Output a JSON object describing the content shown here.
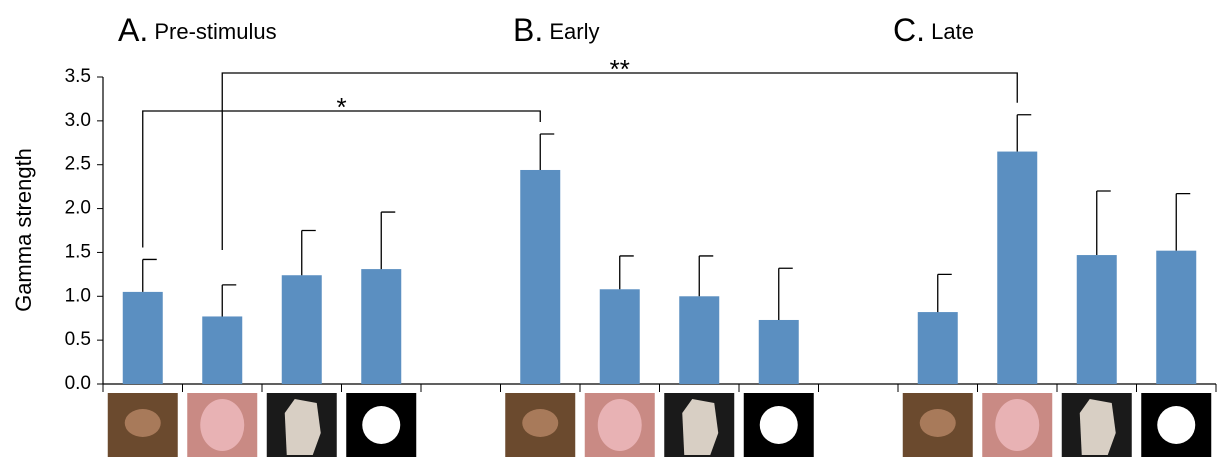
{
  "chart_data": {
    "type": "bar",
    "y_label": "Gamma strength",
    "panels": [
      {
        "letter": "A.",
        "name": "Pre-stimulus"
      },
      {
        "letter": "B.",
        "name": "Early"
      },
      {
        "letter": "C.",
        "name": "Late"
      }
    ],
    "categories": [
      null,
      null,
      null,
      null,
      null,
      null,
      null,
      null,
      null,
      null,
      null,
      null,
      null,
      null
    ],
    "values": [
      1.05,
      0.77,
      1.24,
      1.31,
      null,
      2.44,
      1.08,
      1.0,
      0.73,
      null,
      0.82,
      2.65,
      1.47,
      1.52
    ],
    "errors": [
      0.37,
      0.36,
      0.51,
      0.65,
      null,
      0.41,
      0.38,
      0.46,
      0.59,
      null,
      0.43,
      0.42,
      0.73,
      0.65
    ],
    "color": "#5b8fc1",
    "significance": [
      "*",
      "**"
    ],
    "ylim": [
      0,
      3.5
    ],
    "yticks": [
      {
        "value": 0,
        "label": "0.0"
      },
      0.5,
      {
        "value": 1,
        "label": "1.0"
      },
      1.5,
      {
        "value": 2,
        "label": "2.0"
      },
      2.5,
      {
        "value": 3,
        "label": "3.0"
      },
      3.5
    ],
    "grid": false
  }
}
